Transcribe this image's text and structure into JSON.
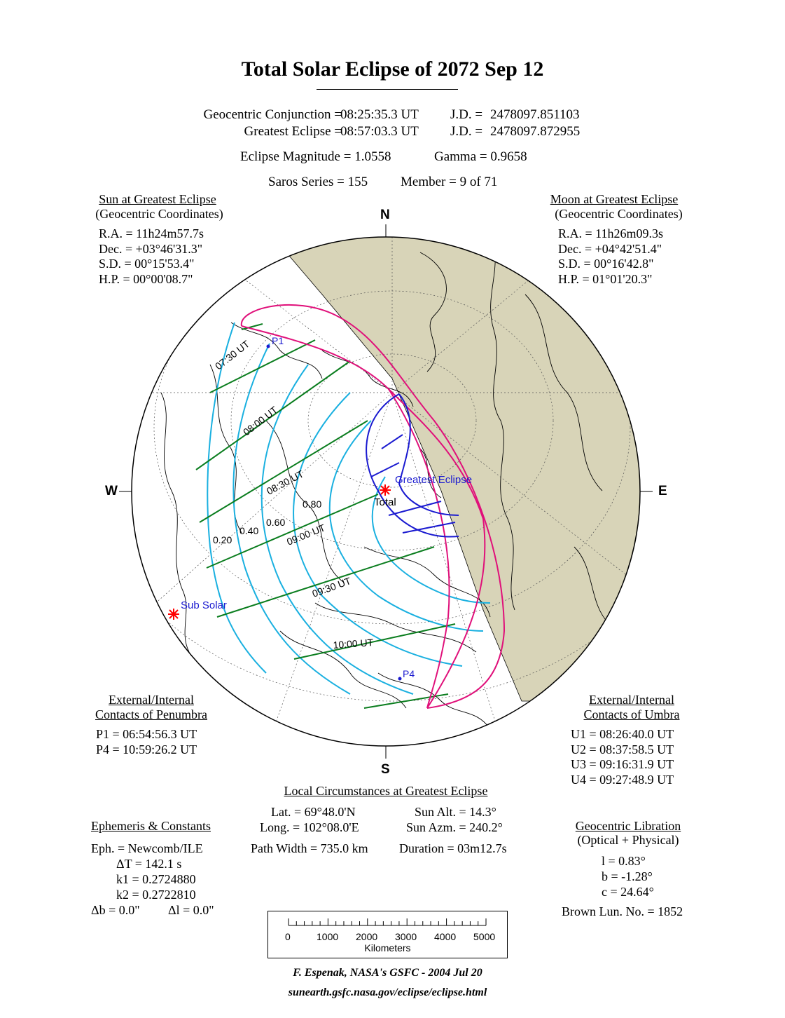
{
  "header": {
    "title": "Total Solar Eclipse of  2072 Sep 12",
    "conj_label": "Geocentric Conjunction =",
    "conj_time": "08:25:35.3 UT",
    "conj_jd_label": "J.D. =",
    "conj_jd": "2478097.851103",
    "greatest_label": "Greatest Eclipse =",
    "greatest_time": "08:57:03.3 UT",
    "greatest_jd_label": "J.D. =",
    "greatest_jd": "2478097.872955",
    "magnitude": "Eclipse Magnitude =  1.0558",
    "gamma": "Gamma =  0.9658",
    "saros": "Saros Series = 155",
    "member": "Member =  9 of 71"
  },
  "sun": {
    "heading": "Sun at Greatest Eclipse",
    "sub": "(Geocentric Coordinates)",
    "lines": [
      "R.A. = 11h24m57.7s",
      "Dec. = +03°46'31.3\"",
      "S.D. =  00°15'53.4\"",
      "H.P. =  00°00'08.7\""
    ]
  },
  "moon": {
    "heading": "Moon at Greatest Eclipse",
    "sub": "(Geocentric Coordinates)",
    "lines": [
      "R.A. = 11h26m09.3s",
      "Dec. = +04°42'51.4\"",
      "S.D. =  00°16'42.8\"",
      "H.P. =  01°01'20.3\""
    ]
  },
  "penumbra": {
    "heading1": "External/Internal",
    "heading2": "Contacts of Penumbra",
    "lines": [
      "P1 = 06:54:56.3 UT",
      "P4 = 10:59:26.2 UT"
    ]
  },
  "umbra": {
    "heading1": "External/Internal",
    "heading2": "Contacts of Umbra",
    "lines": [
      "U1 = 08:26:40.0 UT",
      "U2 = 08:37:58.5 UT",
      "U3 = 09:16:31.9 UT",
      "U4 = 09:27:48.9 UT"
    ]
  },
  "local": {
    "heading": "Local Circumstances at Greatest Eclipse",
    "lat": "Lat. =  69°48.0'N",
    "long": "Long. = 102°08.0'E",
    "sun_alt": "Sun Alt. =   14.3°",
    "sun_azm": "Sun Azm. = 240.2°",
    "path_width": "Path Width = 735.0 km",
    "duration": "Duration =  03m12.7s"
  },
  "ephemeris": {
    "heading": "Ephemeris & Constants",
    "eph": "Eph. = Newcomb/ILE",
    "dt": "ΔT =    142.1 s",
    "k1": "k1 = 0.2724880",
    "k2": "k2 = 0.2722810",
    "db": "Δb =   0.0\"",
    "dl": "Δl =   0.0\""
  },
  "libration": {
    "heading": "Geocentric Libration",
    "sub": "(Optical + Physical)",
    "l": "l =    0.83°",
    "b": "b =  -1.28°",
    "c": "c =  24.64°",
    "brown": "Brown Lun. No. = 1852"
  },
  "scale": {
    "ticks": [
      "0",
      "1000",
      "2000",
      "3000",
      "4000",
      "5000"
    ],
    "unit": "Kilometers"
  },
  "credit": {
    "author": "F. Espenak, NASA's GSFC -  2004 Jul 20",
    "url": "sunearth.gsfc.nasa.gov/eclipse/eclipse.html"
  },
  "map": {
    "compass": {
      "n": "N",
      "s": "S",
      "e": "E",
      "w": "W"
    },
    "labels": {
      "p1": "P1",
      "p4": "P4",
      "greatest": "Greatest Eclipse",
      "total": "Total",
      "sub_solar": "Sub Solar"
    },
    "time_labels": [
      "07:30 UT",
      "08:00 UT",
      "08:30 UT",
      "09:00 UT",
      "09:30 UT",
      "10:00 UT"
    ],
    "magnitude_labels": [
      "0.20",
      "0.40",
      "0.60",
      "0.80"
    ],
    "colors": {
      "penumbra": "#e0107a",
      "time_curves": "#1ab0e0",
      "magnitude_curves": "#0a7d1e",
      "umbra": "#1a1ad0",
      "marker": "#ff0000",
      "night": "#d8d4b8"
    }
  }
}
